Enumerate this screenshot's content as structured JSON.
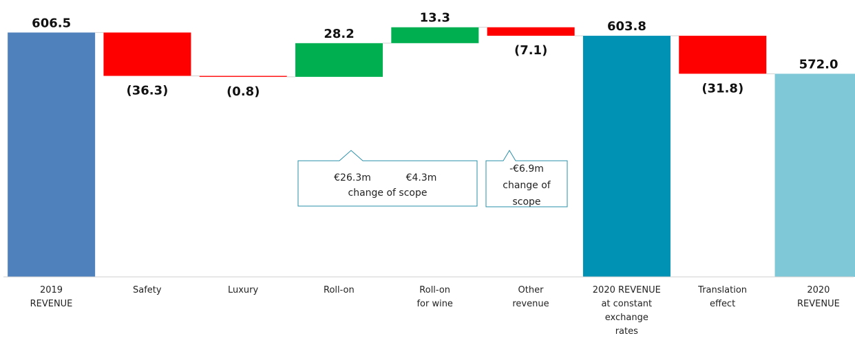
{
  "chart_data": {
    "type": "waterfall",
    "categories": [
      "2019\nREVENUE",
      "Safety",
      "Luxury",
      "Roll-on",
      "Roll-on\nfor wine",
      "Other\nrevenue",
      "2020 REVENUE\nat constant\nexchange\nrates",
      "Translation\neffect",
      "2020\nREVENUE"
    ],
    "values": [
      606.5,
      -36.3,
      -0.8,
      28.2,
      13.3,
      -7.1,
      603.8,
      -31.8,
      572.0
    ],
    "value_labels": [
      "606.5",
      "(36.3)",
      "(0.8)",
      "28.2",
      "13.3",
      "(7.1)",
      "603.8",
      "(31.8)",
      "572.0"
    ],
    "measures": [
      "absolute",
      "relative",
      "relative",
      "relative",
      "relative",
      "relative",
      "absolute",
      "relative",
      "absolute"
    ],
    "colors": [
      "#4f81bd",
      "#ff0000",
      "#ff0000",
      "#00b050",
      "#00b050",
      "#ff0000",
      "#0092b5",
      "#ff0000",
      "#7fc8d8"
    ],
    "ylim": [
      402,
      632
    ],
    "annotations": [
      {
        "texts": [
          "€26.3m",
          "€4.3m",
          "change of scope"
        ]
      },
      {
        "texts": [
          "-€6.9m",
          "change of\nscope"
        ]
      }
    ]
  }
}
